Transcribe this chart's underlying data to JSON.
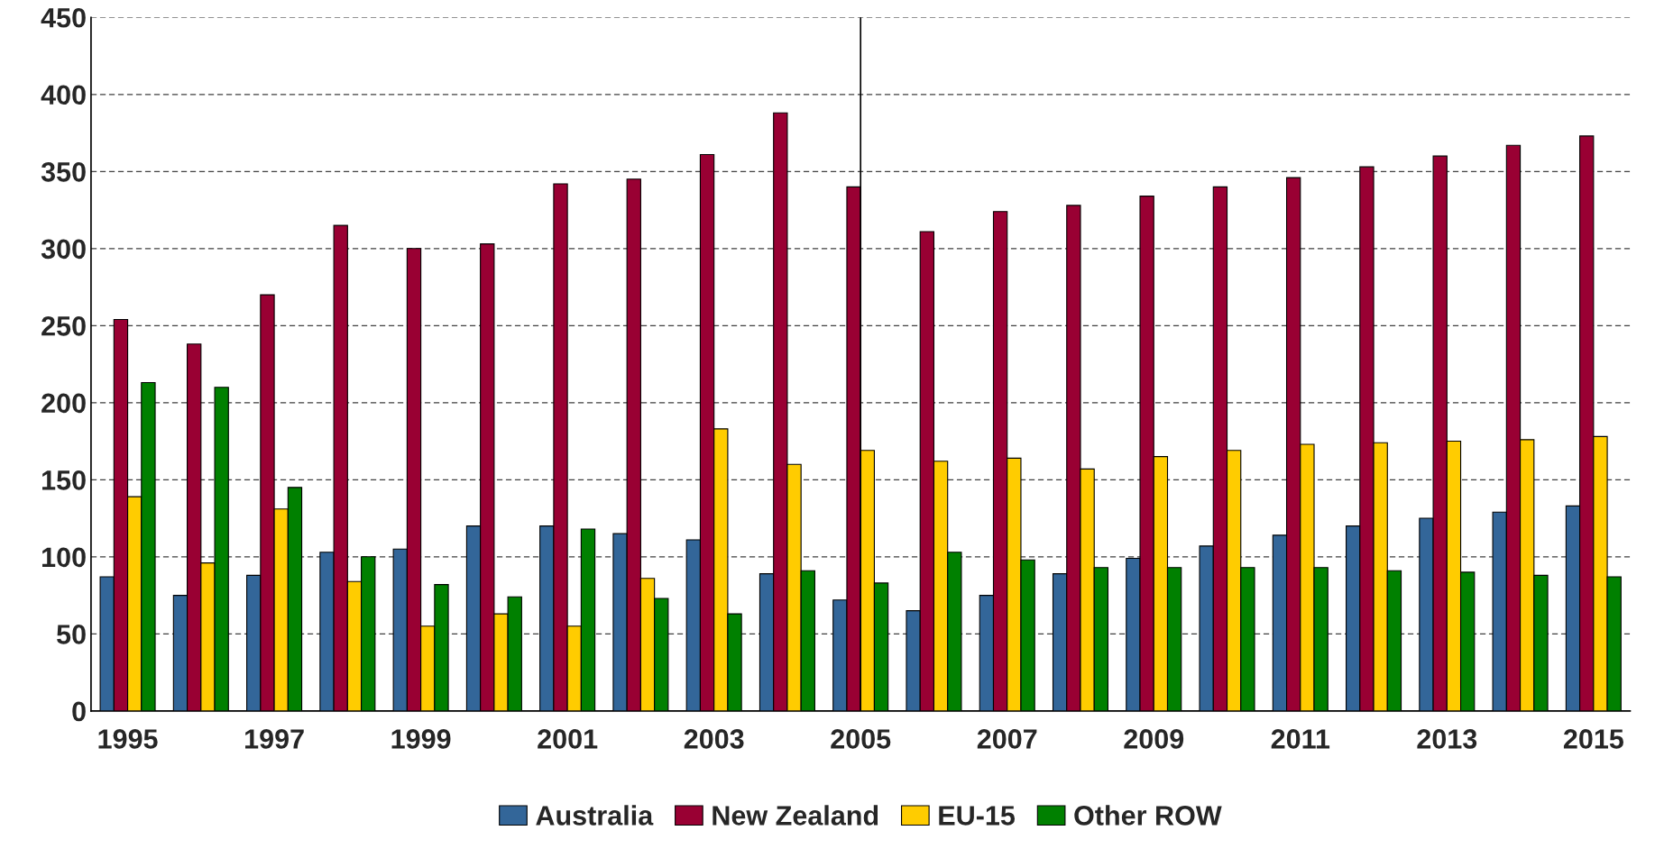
{
  "chart_data": {
    "type": "bar",
    "categories": [
      "1995",
      null,
      "1997",
      null,
      "1999",
      null,
      "2001",
      null,
      "2003",
      null,
      "2005",
      null,
      "2007",
      null,
      "2009",
      null,
      "2011",
      null,
      "2013",
      null,
      "2015"
    ],
    "series": [
      {
        "name": "Australia",
        "color": "#336699",
        "values": [
          87,
          75,
          88,
          103,
          105,
          120,
          120,
          115,
          111,
          89,
          72,
          65,
          75,
          89,
          99,
          107,
          114,
          120,
          125,
          129,
          133
        ]
      },
      {
        "name": "New Zealand",
        "color": "#990033",
        "values": [
          254,
          238,
          270,
          315,
          300,
          303,
          342,
          345,
          361,
          388,
          340,
          311,
          324,
          328,
          334,
          340,
          346,
          353,
          360,
          367,
          373
        ]
      },
      {
        "name": "EU-15",
        "color": "#ffcc00",
        "values": [
          139,
          96,
          131,
          84,
          55,
          63,
          55,
          86,
          183,
          160,
          169,
          162,
          164,
          157,
          165,
          169,
          173,
          174,
          175,
          176,
          178
        ]
      },
      {
        "name": "Other ROW",
        "color": "#008000",
        "values": [
          213,
          210,
          145,
          100,
          82,
          74,
          118,
          73,
          63,
          91,
          83,
          103,
          98,
          93,
          93,
          93,
          93,
          91,
          90,
          88,
          87
        ]
      }
    ],
    "ylim": [
      0,
      450
    ],
    "yticks": [
      0,
      50,
      100,
      150,
      200,
      250,
      300,
      350,
      400,
      450
    ],
    "grid": "y",
    "legend": "bottom",
    "ref_lines": [
      {
        "axis": "x",
        "value": "2005",
        "color": "#000000"
      }
    ]
  }
}
